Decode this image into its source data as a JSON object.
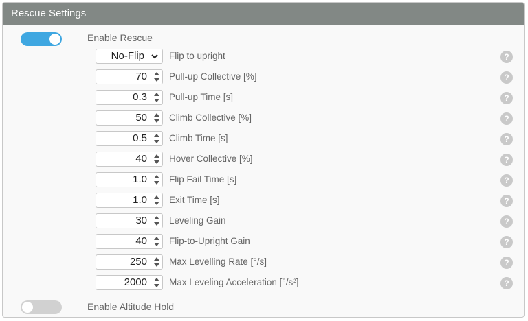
{
  "panel": {
    "title": "Rescue Settings"
  },
  "enable_rescue": {
    "label": "Enable Rescue",
    "on": true
  },
  "enable_altitude_hold": {
    "label": "Enable Altitude Hold",
    "on": false
  },
  "flip": {
    "value": "No-Flip",
    "label": "Flip to upright",
    "help_icon": "question-icon"
  },
  "rows": [
    {
      "value": "70",
      "label": "Pull-up Collective [%]"
    },
    {
      "value": "0.3",
      "label": "Pull-up Time [s]"
    },
    {
      "value": "50",
      "label": "Climb Collective [%]"
    },
    {
      "value": "0.5",
      "label": "Climb Time [s]"
    },
    {
      "value": "40",
      "label": "Hover Collective [%]"
    },
    {
      "value": "1.0",
      "label": "Flip Fail Time [s]"
    },
    {
      "value": "1.0",
      "label": "Exit Time [s]"
    },
    {
      "value": "30",
      "label": "Leveling Gain"
    },
    {
      "value": "40",
      "label": "Flip-to-Upright Gain"
    },
    {
      "value": "250",
      "label": "Max Levelling Rate [°/s]"
    },
    {
      "value": "2000",
      "label": "Max Leveling Acceleration [°/s²]"
    }
  ],
  "help_glyph": "?",
  "colors": {
    "header_bg": "#828885",
    "toggle_on": "#3fa7e1",
    "toggle_off": "#d1d1d1"
  }
}
